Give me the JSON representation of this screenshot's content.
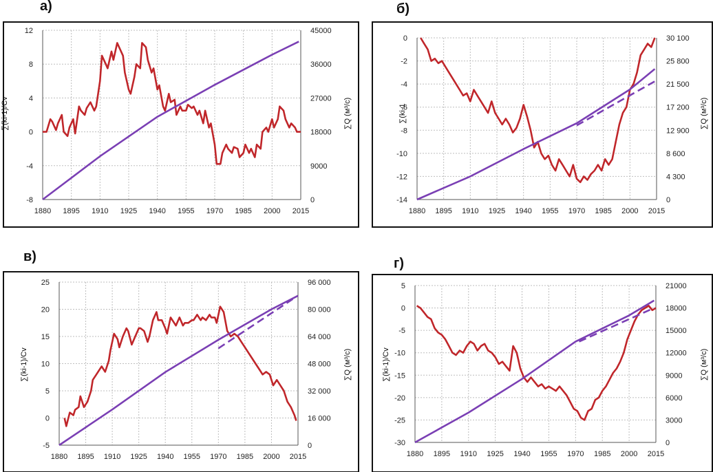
{
  "colors": {
    "red_series": "#c0262a",
    "purple_series": "#7a3fb4",
    "grid": "#bdbdbd",
    "frame": "#111111"
  },
  "panels": [
    {
      "letter": "а)"
    },
    {
      "letter": "б)"
    },
    {
      "letter": "в)"
    },
    {
      "letter": "г)"
    }
  ],
  "chart_data": [
    {
      "type": "line",
      "panel": "а)",
      "x_ticks": [
        "1880",
        "1895",
        "1910",
        "1925",
        "1940",
        "1955",
        "1970",
        "1985",
        "2000",
        "2015"
      ],
      "xlim": [
        1880,
        2015
      ],
      "ylabel": "∑(ki-1)/Cv",
      "ylim": [
        -8,
        12
      ],
      "y_ticks": [
        "12",
        "8",
        "4",
        "0",
        "-4",
        "-8"
      ],
      "y_tick_values": [
        12,
        8,
        4,
        0,
        -4,
        -8
      ],
      "ylabel_right": "∑Q (м³/с)",
      "ylim_right": [
        0,
        45000
      ],
      "y_ticks_right": [
        "45000",
        "36000",
        "27000",
        "18000",
        "9000",
        "0"
      ],
      "y_tick_values_right": [
        45000,
        36000,
        27000,
        18000,
        9000,
        0
      ],
      "series": [
        {
          "axis": "left",
          "color": "red",
          "style": "solid",
          "x": [
            1880,
            1882,
            1884,
            1885,
            1887,
            1888,
            1890,
            1891,
            1893,
            1894,
            1896,
            1897,
            1899,
            1900,
            1902,
            1903,
            1905,
            1907,
            1908,
            1910,
            1911,
            1913,
            1914,
            1916,
            1917,
            1919,
            1920,
            1922,
            1923,
            1925,
            1926,
            1928,
            1929,
            1931,
            1932,
            1934,
            1935,
            1937,
            1938,
            1940,
            1941,
            1943,
            1944,
            1946,
            1947,
            1949,
            1950,
            1952,
            1953,
            1955,
            1956,
            1958,
            1959,
            1961,
            1962,
            1964,
            1965,
            1967,
            1968,
            1970,
            1971,
            1973,
            1974,
            1976,
            1977,
            1979,
            1980,
            1982,
            1983,
            1985,
            1986,
            1988,
            1989,
            1991,
            1992,
            1994,
            1995,
            1997,
            1998,
            2000,
            2001,
            2003,
            2004,
            2006,
            2007,
            2009,
            2010,
            2012,
            2013,
            2015
          ],
          "y": [
            0.0,
            0.0,
            1.5,
            1.2,
            0.2,
            1.0,
            2.0,
            0.0,
            -0.5,
            0.5,
            1.5,
            -0.2,
            3.0,
            2.5,
            2.0,
            2.8,
            3.5,
            2.5,
            3.0,
            6.0,
            9.0,
            8.0,
            7.5,
            9.5,
            8.5,
            10.5,
            10.0,
            9.0,
            7.0,
            5.0,
            4.5,
            6.5,
            8.0,
            7.5,
            10.5,
            10.0,
            8.5,
            7.0,
            7.5,
            5.0,
            5.5,
            3.0,
            2.5,
            4.5,
            3.5,
            3.8,
            2.0,
            3.0,
            2.5,
            2.5,
            3.2,
            2.8,
            3.0,
            2.0,
            2.5,
            1.0,
            2.5,
            0.5,
            1.0,
            -1.5,
            -3.8,
            -3.8,
            -2.5,
            -1.5,
            -2.0,
            -2.5,
            -1.8,
            -2.0,
            -3.0,
            -2.5,
            -1.5,
            -2.5,
            -2.0,
            -3.0,
            -1.5,
            -2.0,
            0.0,
            0.5,
            0.0,
            1.5,
            0.5,
            1.5,
            3.0,
            2.5,
            1.5,
            0.5,
            1.0,
            0.5,
            0.0,
            0.0
          ]
        },
        {
          "axis": "right",
          "color": "purple",
          "style": "solid",
          "x": [
            1880,
            1910,
            1940,
            1970,
            2000,
            2014
          ],
          "y": [
            0,
            11500,
            22000,
            30500,
            38500,
            42000
          ]
        }
      ]
    },
    {
      "type": "line",
      "panel": "б)",
      "x_ticks": [
        "1880",
        "1895",
        "1910",
        "1925",
        "1940",
        "1955",
        "1970",
        "1985",
        "2000",
        "2015"
      ],
      "xlim": [
        1880,
        2015
      ],
      "ylabel": "∑(ki-1",
      "ylim": [
        -14,
        0
      ],
      "y_ticks": [
        "0",
        "-2",
        "-4",
        "-6",
        "-8",
        "-10",
        "-12",
        "-14"
      ],
      "y_tick_values": [
        0,
        -2,
        -4,
        -6,
        -8,
        -10,
        -12,
        -14
      ],
      "ylabel_right": "∑Q (м³/с)",
      "ylim_right": [
        0,
        30100
      ],
      "y_ticks_right": [
        "30 100",
        "25 800",
        "21 500",
        "17 200",
        "12 900",
        "8 600",
        "4 300",
        "0"
      ],
      "y_tick_values_right": [
        30100,
        25800,
        21500,
        17200,
        12900,
        8600,
        4300,
        0
      ],
      "series": [
        {
          "axis": "left",
          "color": "red",
          "style": "solid",
          "x": [
            1882,
            1884,
            1886,
            1888,
            1890,
            1892,
            1894,
            1896,
            1898,
            1900,
            1902,
            1904,
            1906,
            1908,
            1910,
            1912,
            1914,
            1916,
            1918,
            1920,
            1922,
            1924,
            1926,
            1928,
            1930,
            1932,
            1934,
            1936,
            1938,
            1940,
            1942,
            1944,
            1946,
            1948,
            1950,
            1952,
            1954,
            1956,
            1958,
            1960,
            1962,
            1964,
            1966,
            1968,
            1970,
            1972,
            1974,
            1976,
            1978,
            1980,
            1982,
            1984,
            1986,
            1988,
            1990,
            1992,
            1994,
            1996,
            1998,
            2000,
            2002,
            2004,
            2006,
            2008,
            2010,
            2012,
            2014
          ],
          "y": [
            0.0,
            -0.5,
            -1.0,
            -2.0,
            -1.8,
            -2.2,
            -2.0,
            -2.5,
            -3.0,
            -3.5,
            -4.0,
            -4.5,
            -5.0,
            -4.8,
            -5.5,
            -4.5,
            -5.0,
            -5.5,
            -6.0,
            -6.5,
            -5.5,
            -6.5,
            -7.0,
            -7.5,
            -7.0,
            -7.5,
            -8.2,
            -7.8,
            -7.0,
            -5.8,
            -6.8,
            -8.0,
            -9.5,
            -9.0,
            -10.0,
            -10.5,
            -10.2,
            -11.0,
            -11.5,
            -10.5,
            -11.0,
            -11.5,
            -12.0,
            -11.0,
            -12.2,
            -12.5,
            -12.0,
            -12.3,
            -11.8,
            -11.5,
            -11.0,
            -11.5,
            -10.5,
            -11.0,
            -10.5,
            -9.0,
            -7.5,
            -6.5,
            -6.0,
            -4.5,
            -4.0,
            -3.0,
            -1.5,
            -1.0,
            -0.5,
            -0.8,
            0.0
          ]
        },
        {
          "axis": "right",
          "color": "purple",
          "style": "solid",
          "x": [
            1880,
            1910,
            1940,
            1970,
            2000,
            2014
          ],
          "y": [
            0,
            4300,
            9400,
            14200,
            20500,
            24300
          ]
        },
        {
          "axis": "right",
          "color": "purple",
          "style": "dashed",
          "x": [
            1970,
            2014
          ],
          "y": [
            13800,
            22000
          ]
        }
      ]
    },
    {
      "type": "line",
      "panel": "в)",
      "x_ticks": [
        "1880",
        "1895",
        "1910",
        "1925",
        "1940",
        "1955",
        "1970",
        "1985",
        "2000",
        "2015"
      ],
      "xlim": [
        1880,
        2015
      ],
      "ylabel": "∑(ki-1)/Cv",
      "ylim": [
        -5,
        25
      ],
      "y_ticks": [
        "25",
        "20",
        "15",
        "10",
        "5",
        "0",
        "-5"
      ],
      "y_tick_values": [
        25,
        20,
        15,
        10,
        5,
        0,
        -5
      ],
      "ylabel_right": "∑Q (м³/с)",
      "ylim_right": [
        0,
        96000
      ],
      "y_ticks_right": [
        "96 000",
        "80 000",
        "64 000",
        "48 000",
        "32 000",
        "16 000",
        "0"
      ],
      "y_tick_values_right": [
        96000,
        80000,
        64000,
        48000,
        32000,
        16000,
        0
      ],
      "series": [
        {
          "axis": "left",
          "color": "red",
          "style": "solid",
          "x": [
            1883,
            1884,
            1886,
            1888,
            1889,
            1891,
            1892,
            1894,
            1896,
            1898,
            1899,
            1901,
            1903,
            1904,
            1906,
            1908,
            1909,
            1911,
            1913,
            1914,
            1916,
            1918,
            1919,
            1921,
            1923,
            1925,
            1926,
            1928,
            1930,
            1931,
            1933,
            1935,
            1936,
            1938,
            1940,
            1941,
            1943,
            1945,
            1946,
            1948,
            1950,
            1951,
            1953,
            1955,
            1956,
            1958,
            1960,
            1961,
            1963,
            1965,
            1966,
            1968,
            1969,
            1971,
            1973,
            1975,
            1977,
            1979,
            1981,
            1983,
            1985,
            1987,
            1989,
            1991,
            1993,
            1995,
            1997,
            1999,
            2001,
            2003,
            2005,
            2007,
            2009,
            2011,
            2013,
            2014
          ],
          "y": [
            0.0,
            -1.5,
            1.0,
            0.5,
            1.5,
            2.0,
            4.0,
            2.0,
            3.0,
            5.0,
            7.0,
            8.0,
            9.0,
            9.5,
            8.5,
            10.5,
            12.5,
            15.5,
            14.5,
            13.0,
            15.0,
            16.5,
            16.0,
            13.5,
            15.0,
            16.5,
            16.5,
            16.0,
            14.0,
            15.0,
            18.0,
            19.5,
            18.0,
            18.0,
            16.5,
            15.5,
            18.5,
            17.5,
            17.0,
            18.5,
            17.0,
            17.5,
            17.5,
            18.0,
            18.0,
            19.0,
            18.0,
            18.5,
            18.0,
            19.0,
            18.5,
            18.5,
            17.5,
            20.5,
            19.5,
            16.0,
            15.0,
            15.5,
            15.0,
            14.0,
            13.0,
            12.0,
            11.0,
            10.0,
            9.0,
            8.0,
            8.5,
            8.0,
            6.0,
            7.0,
            6.0,
            5.0,
            3.0,
            2.0,
            0.5,
            -0.5
          ]
        },
        {
          "axis": "right",
          "color": "purple",
          "style": "solid",
          "x": [
            1880,
            1910,
            1940,
            1970,
            2000,
            2015
          ],
          "y": [
            0,
            21000,
            43000,
            62000,
            80000,
            88000
          ]
        },
        {
          "axis": "right",
          "color": "purple",
          "style": "dashed",
          "x": [
            1970,
            2012
          ],
          "y": [
            57000,
            86000
          ]
        }
      ]
    },
    {
      "type": "line",
      "panel": "г)",
      "x_ticks": [
        "1880",
        "1895",
        "1910",
        "1925",
        "1940",
        "1955",
        "1970",
        "1985",
        "2000",
        "2015"
      ],
      "xlim": [
        1880,
        2015
      ],
      "ylabel": "∑(ki-1)/Cv",
      "ylim": [
        -30,
        5
      ],
      "y_ticks": [
        "5",
        "0",
        "-5",
        "-10",
        "-15",
        "-20",
        "-25",
        "-30"
      ],
      "y_tick_values": [
        5,
        0,
        -5,
        -10,
        -15,
        -20,
        -25,
        -30
      ],
      "ylabel_right": "∑Q (м³/с)",
      "ylim_right": [
        0,
        21000
      ],
      "y_ticks_right": [
        "21000",
        "18000",
        "15000",
        "12000",
        "9000",
        "6000",
        "3000",
        "0"
      ],
      "y_tick_values_right": [
        21000,
        18000,
        15000,
        12000,
        9000,
        6000,
        3000,
        0
      ],
      "series": [
        {
          "axis": "left",
          "color": "red",
          "style": "solid",
          "x": [
            1881,
            1883,
            1885,
            1887,
            1889,
            1891,
            1893,
            1895,
            1897,
            1899,
            1901,
            1903,
            1905,
            1907,
            1909,
            1911,
            1913,
            1915,
            1917,
            1919,
            1921,
            1923,
            1925,
            1927,
            1929,
            1931,
            1933,
            1935,
            1937,
            1939,
            1941,
            1943,
            1945,
            1947,
            1949,
            1951,
            1953,
            1955,
            1957,
            1959,
            1961,
            1963,
            1965,
            1967,
            1969,
            1971,
            1973,
            1975,
            1977,
            1979,
            1981,
            1983,
            1985,
            1987,
            1989,
            1991,
            1993,
            1995,
            1997,
            1999,
            2001,
            2003,
            2005,
            2007,
            2009,
            2011,
            2013,
            2015
          ],
          "y": [
            0.5,
            0.0,
            -1.0,
            -2.0,
            -2.5,
            -4.5,
            -5.5,
            -6.0,
            -7.0,
            -8.5,
            -10.0,
            -10.5,
            -9.5,
            -10.0,
            -8.5,
            -7.5,
            -8.0,
            -9.5,
            -8.5,
            -8.0,
            -9.5,
            -10.0,
            -11.0,
            -12.5,
            -12.0,
            -13.0,
            -14.0,
            -8.5,
            -10.0,
            -13.5,
            -15.5,
            -16.5,
            -15.5,
            -16.5,
            -17.5,
            -17.0,
            -18.0,
            -17.5,
            -18.0,
            -18.5,
            -17.5,
            -18.5,
            -19.5,
            -21.0,
            -22.5,
            -23.0,
            -24.5,
            -25.0,
            -23.0,
            -22.5,
            -20.5,
            -20.0,
            -18.5,
            -17.5,
            -16.0,
            -14.5,
            -13.5,
            -12.0,
            -10.0,
            -7.0,
            -5.0,
            -3.0,
            -1.5,
            -0.5,
            0.0,
            0.5,
            -0.5,
            0.0
          ]
        },
        {
          "axis": "right",
          "color": "purple",
          "style": "solid",
          "x": [
            1880,
            1910,
            1940,
            1970,
            2000,
            2014
          ],
          "y": [
            0,
            4000,
            8500,
            13500,
            17000,
            19000
          ]
        },
        {
          "axis": "right",
          "color": "purple",
          "style": "dashed",
          "x": [
            1972,
            2014
          ],
          "y": [
            13500,
            18000
          ]
        }
      ]
    }
  ]
}
